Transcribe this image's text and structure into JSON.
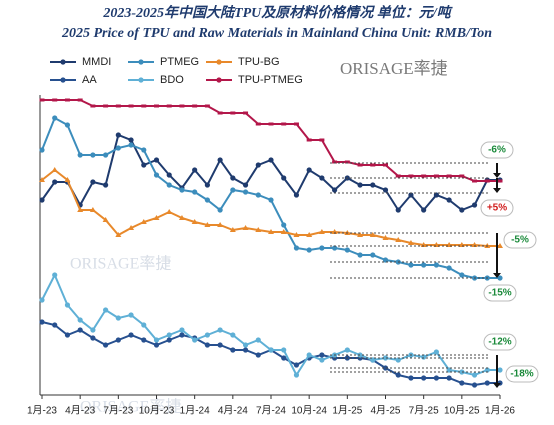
{
  "chart_data": {
    "type": "line",
    "title": "2023-2025年中国大陆TPU及原材料价格情况  单位：元/吨",
    "subtitle": "2025 Price of TPU and Raw Materials in Mainland China Unit:  RMB/Ton",
    "watermark": "ORISAGE率捷",
    "categories": [
      "1月-23",
      null,
      null,
      "4月-23",
      null,
      null,
      "7月-23",
      null,
      null,
      "10月-23",
      null,
      null,
      "1月-24",
      null,
      null,
      "4月-24",
      null,
      null,
      "7月-24",
      null,
      null,
      "10月-24",
      null,
      null,
      "1月-25",
      null,
      null,
      "4月-25",
      null,
      null,
      "7月-25",
      null,
      null,
      "10月-25",
      null,
      null,
      "1月-26"
    ],
    "ylim": [
      0,
      300
    ],
    "series": [
      {
        "name": "MMDI",
        "color": "#1f3b6e",
        "marker": "circle",
        "values": [
          195,
          213,
          213,
          190,
          213,
          210,
          260,
          255,
          230,
          235,
          220,
          207,
          225,
          210,
          235,
          217,
          210,
          230,
          235,
          217,
          200,
          225,
          217,
          205,
          217,
          210,
          210,
          205,
          185,
          200,
          185,
          200,
          195,
          185,
          190,
          215,
          215
        ]
      },
      {
        "name": "PTMEG",
        "color": "#3c8dbc",
        "marker": "circle",
        "values": [
          245,
          277,
          270,
          240,
          240,
          240,
          247,
          250,
          245,
          220,
          210,
          205,
          203,
          195,
          185,
          205,
          203,
          200,
          195,
          170,
          147,
          145,
          147,
          147,
          145,
          140,
          140,
          135,
          133,
          130,
          130,
          130,
          127,
          120,
          117,
          117,
          117
        ]
      },
      {
        "name": "TPU-BG",
        "color": "#e8892b",
        "marker": "triangle",
        "values": [
          215,
          225,
          215,
          185,
          185,
          175,
          160,
          167,
          173,
          177,
          183,
          177,
          173,
          170,
          170,
          165,
          167,
          165,
          163,
          163,
          160,
          160,
          163,
          163,
          162,
          160,
          160,
          157,
          155,
          152,
          150,
          150,
          150,
          150,
          150,
          149,
          149
        ]
      },
      {
        "name": "AA",
        "color": "#27508f",
        "marker": "circle",
        "values": [
          73,
          70,
          60,
          65,
          57,
          50,
          55,
          60,
          55,
          50,
          55,
          60,
          57,
          50,
          50,
          45,
          45,
          40,
          45,
          37,
          30,
          37,
          40,
          37,
          37,
          37,
          35,
          27,
          20,
          17,
          17,
          17,
          17,
          12,
          10,
          12,
          12
        ]
      },
      {
        "name": "BDO",
        "color": "#5fb0d6",
        "marker": "circle",
        "values": [
          95,
          120,
          90,
          75,
          65,
          85,
          77,
          80,
          70,
          55,
          60,
          65,
          55,
          60,
          65,
          60,
          50,
          55,
          45,
          45,
          20,
          40,
          35,
          40,
          45,
          40,
          35,
          37,
          35,
          40,
          38,
          43,
          25,
          23,
          20,
          25,
          25
        ]
      },
      {
        "name": "TPU-PTMEG",
        "color": "#b3174a",
        "marker": "square",
        "values": [
          295,
          295,
          295,
          295,
          289,
          289,
          289,
          289,
          289,
          289,
          289,
          289,
          289,
          289,
          282,
          282,
          282,
          271,
          271,
          271,
          271,
          255,
          255,
          233,
          233,
          230,
          230,
          230,
          219,
          219,
          219,
          219,
          219,
          219,
          214,
          214,
          214
        ]
      }
    ],
    "annotations": [
      {
        "text": "-6%",
        "color": "#1a8a3a"
      },
      {
        "text": "+5%",
        "color": "#d01c1c"
      },
      {
        "text": "-5%",
        "color": "#1a8a3a"
      },
      {
        "text": "-15%",
        "color": "#1a8a3a"
      },
      {
        "text": "-12%",
        "color": "#1a8a3a"
      },
      {
        "text": "-18%",
        "color": "#1a8a3a"
      }
    ]
  }
}
